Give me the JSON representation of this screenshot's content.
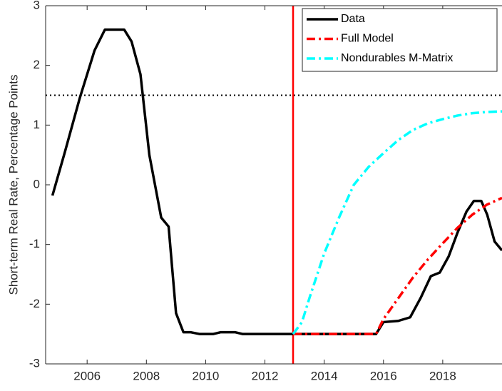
{
  "chart_data": {
    "type": "line",
    "y_label": "Short-term Real Rate, Percentage Points",
    "xlim": [
      2004.6,
      2020
    ],
    "ylim": [
      -3,
      3
    ],
    "xticks": [
      2006,
      2008,
      2010,
      2012,
      2014,
      2016,
      2018
    ],
    "yticks": [
      -3,
      -2,
      -1,
      0,
      1,
      2,
      3
    ],
    "legend": "top-right",
    "vline": {
      "x": 2012.95,
      "color": "#ff0000"
    },
    "hline": {
      "y": 1.5,
      "color": "#000000"
    },
    "series": [
      {
        "name": "Data",
        "color": "#000000",
        "style": "solid",
        "x": [
          2004.83,
          2005.25,
          2005.75,
          2006.25,
          2006.6,
          2007.0,
          2007.25,
          2007.5,
          2007.8,
          2008.1,
          2008.5,
          2008.75,
          2009.0,
          2009.25,
          2009.5,
          2009.8,
          2010.25,
          2010.5,
          2011.0,
          2011.25,
          2012.0,
          2012.95,
          2013.5,
          2014.5,
          2015.5,
          2015.75,
          2016.0,
          2016.5,
          2016.9,
          2017.25,
          2017.6,
          2017.9,
          2018.2,
          2018.5,
          2018.8,
          2019.05,
          2019.3,
          2019.5,
          2019.75,
          2020.0
        ],
        "values": [
          -0.18,
          0.55,
          1.45,
          2.25,
          2.6,
          2.6,
          2.6,
          2.4,
          1.85,
          0.5,
          -0.55,
          -0.7,
          -2.15,
          -2.47,
          -2.47,
          -2.5,
          -2.5,
          -2.47,
          -2.47,
          -2.5,
          -2.5,
          -2.5,
          -2.5,
          -2.5,
          -2.5,
          -2.5,
          -2.3,
          -2.28,
          -2.22,
          -1.9,
          -1.53,
          -1.47,
          -1.2,
          -0.8,
          -0.45,
          -0.27,
          -0.27,
          -0.5,
          -0.95,
          -1.1
        ]
      },
      {
        "name": "Full Model",
        "color": "#ff0000",
        "style": "dashdot",
        "x": [
          2012.95,
          2013.5,
          2014.5,
          2015.5,
          2015.75,
          2016.0,
          2016.5,
          2017.0,
          2017.5,
          2018.0,
          2018.5,
          2019.0,
          2019.5,
          2020.0
        ],
        "values": [
          -2.5,
          -2.5,
          -2.5,
          -2.5,
          -2.5,
          -2.25,
          -1.9,
          -1.55,
          -1.25,
          -0.98,
          -0.72,
          -0.5,
          -0.33,
          -0.22
        ]
      },
      {
        "name": "Nondurables M-Matrix",
        "color": "#00ffff",
        "style": "dashdot",
        "x": [
          2012.95,
          2013.25,
          2013.5,
          2014.0,
          2014.5,
          2015.0,
          2015.5,
          2016.0,
          2016.5,
          2017.0,
          2017.5,
          2018.0,
          2018.5,
          2019.0,
          2019.5,
          2020.0
        ],
        "values": [
          -2.5,
          -2.3,
          -1.9,
          -1.15,
          -0.55,
          0.0,
          0.3,
          0.53,
          0.75,
          0.92,
          1.03,
          1.1,
          1.16,
          1.2,
          1.22,
          1.23
        ]
      }
    ]
  }
}
